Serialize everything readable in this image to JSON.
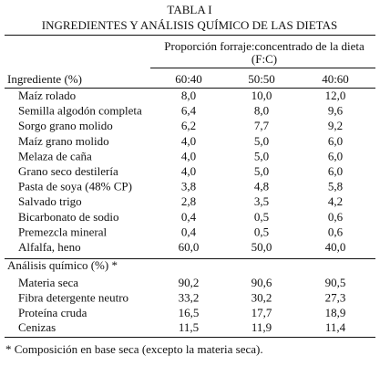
{
  "title": {
    "line1": "TABLA I",
    "line2": "INGREDIENTES Y ANÁLISIS QUÍMICO DE LAS DIETAS"
  },
  "header": {
    "group": "Proporción forraje:concentrado de la dieta",
    "group_sub": "(F:C)",
    "row_label": "Ingrediente (%)",
    "columns": [
      "60:40",
      "50:50",
      "40:60"
    ]
  },
  "ingredients": [
    [
      "Maíz rolado",
      "8,0",
      "10,0",
      "12,0"
    ],
    [
      "Semilla algodón completa",
      "6,4",
      "8,0",
      "9,6"
    ],
    [
      "Sorgo grano molido",
      "6,2",
      "7,7",
      "9,2"
    ],
    [
      "Maíz grano molido",
      "4,0",
      "5,0",
      "6,0"
    ],
    [
      "Melaza de caña",
      "4,0",
      "5,0",
      "6,0"
    ],
    [
      "Grano seco destilería",
      "4,0",
      "5,0",
      "6,0"
    ],
    [
      "Pasta de soya (48% CP)",
      "3,8",
      "4,8",
      "5,8"
    ],
    [
      "Salvado trigo",
      "2,8",
      "3,5",
      "4,2"
    ],
    [
      "Bicarbonato de sodio",
      "0,4",
      "0,5",
      "0,6"
    ],
    [
      "Premezcla mineral",
      "0,4",
      "0,5",
      "0,6"
    ],
    [
      "Alfalfa, heno",
      "60,0",
      "50,0",
      "40,0"
    ]
  ],
  "analysis_label": "Análisis químico (%) *",
  "analysis": [
    [
      "Materia seca",
      "90,2",
      "90,6",
      "90,5"
    ],
    [
      "Fibra detergente neutro",
      "33,2",
      "30,2",
      "27,3"
    ],
    [
      "Proteína cruda",
      "16,5",
      "17,7",
      "18,9"
    ],
    [
      "Cenizas",
      "11,5",
      "11,9",
      "11,4"
    ]
  ],
  "footnote": "* Composición en base seca (excepto la materia seca)."
}
